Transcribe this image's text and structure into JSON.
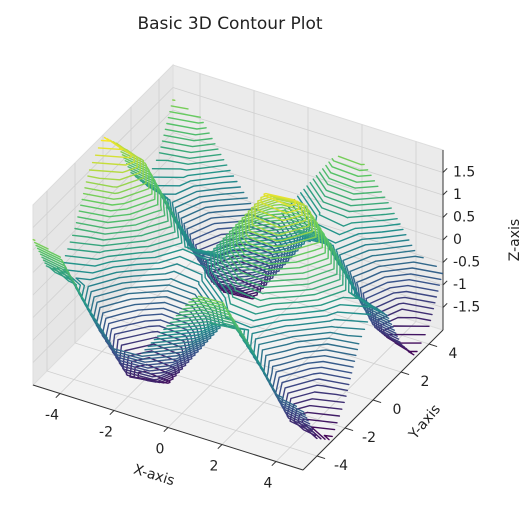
{
  "chart_data": {
    "type": "contour3d",
    "title": "Basic 3D Contour Plot",
    "xlabel": "X-axis",
    "ylabel": "Y-axis",
    "zlabel": "Z-axis",
    "x": [
      -5,
      -4,
      -3,
      -2,
      -1,
      0,
      1,
      2,
      3,
      4,
      5
    ],
    "y": [
      -5,
      -4,
      -3,
      -2,
      -1,
      0,
      1,
      2,
      3,
      4,
      5
    ],
    "z": [
      [
        1.24,
        1.04,
        0.14,
        -0.63,
        -0.56,
        0.28,
        1.12,
        1.19,
        0.42,
        -0.48,
        -0.68
      ],
      [
        0.31,
        0.11,
        -0.79,
        -1.56,
        -1.49,
        -0.65,
        0.19,
        0.26,
        -0.51,
        -1.41,
        -1.61
      ],
      [
        -0.03,
        -0.23,
        -1.13,
        -1.9,
        -1.83,
        -0.99,
        -0.15,
        -0.08,
        -0.85,
        -1.75,
        -1.95
      ],
      [
        0.54,
        0.34,
        -0.56,
        -1.33,
        -1.26,
        -0.42,
        0.42,
        0.49,
        -0.28,
        -1.18,
        -1.38
      ],
      [
        1.5,
        1.3,
        0.4,
        -0.37,
        -0.3,
        0.54,
        1.38,
        1.45,
        0.68,
        -0.22,
        -0.42
      ],
      [
        1.96,
        1.76,
        0.86,
        0.09,
        0.16,
        1,
        1.84,
        1.91,
        1.14,
        0.24,
        0.04
      ],
      [
        1.5,
        1.3,
        0.4,
        -0.37,
        -0.3,
        0.54,
        1.38,
        1.45,
        0.68,
        -0.22,
        -0.42
      ],
      [
        0.54,
        0.34,
        -0.56,
        -1.33,
        -1.26,
        -0.42,
        0.42,
        0.49,
        -0.28,
        -1.18,
        -1.38
      ],
      [
        -0.03,
        -0.23,
        -1.13,
        -1.9,
        -1.83,
        -0.99,
        -0.15,
        -0.08,
        -0.85,
        -1.75,
        -1.95
      ],
      [
        0.31,
        0.11,
        -0.79,
        -1.56,
        -1.49,
        -0.65,
        0.19,
        0.26,
        -0.51,
        -1.41,
        -1.61
      ],
      [
        1.24,
        1.04,
        0.14,
        -0.63,
        -0.56,
        0.28,
        1.12,
        1.19,
        0.42,
        -0.48,
        -0.68
      ]
    ],
    "levels": 40,
    "colormap": "viridis",
    "xlim": [
      -5,
      5
    ],
    "ylim": [
      -5,
      5
    ],
    "zlim": [
      -2,
      2
    ],
    "xticks": [
      -4,
      -2,
      0,
      2,
      4
    ],
    "yticks": [
      -4,
      -2,
      0,
      2,
      4
    ],
    "zticks": [
      -1.5,
      -1.0,
      -0.5,
      0.0,
      0.5,
      1.0,
      1.5
    ],
    "grid": true
  }
}
